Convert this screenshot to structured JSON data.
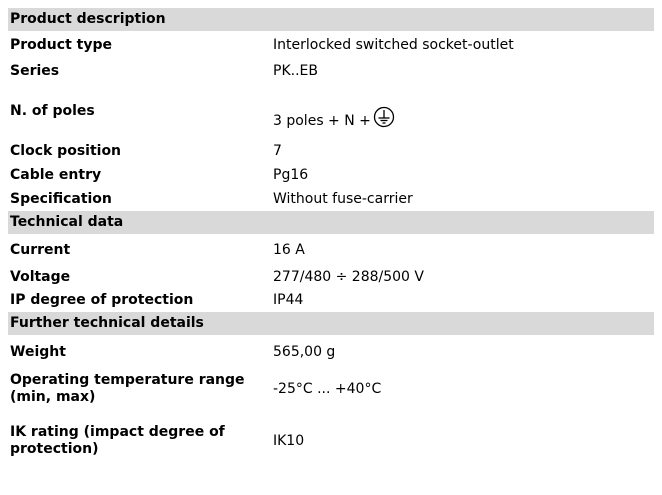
{
  "sections": [
    {
      "title": "Product description",
      "rows": [
        {
          "label": "Product type",
          "value": "Interlocked switched socket-outlet"
        },
        {
          "label": "Series",
          "value": "PK..EB"
        },
        {
          "label": "N. of poles",
          "value": "3 poles + N +"
        },
        {
          "label": "Clock position",
          "value": "7"
        },
        {
          "label": "Cable entry",
          "value": "Pg16"
        },
        {
          "label": "Specification",
          "value": "Without fuse-carrier"
        }
      ]
    },
    {
      "title": "Technical data",
      "rows": [
        {
          "label": "Current",
          "value": "16 A"
        },
        {
          "label": "Voltage",
          "value": "277/480 ÷ 288/500 V"
        },
        {
          "label": "IP degree of protection",
          "value": "IP44"
        }
      ]
    },
    {
      "title": "Further technical details",
      "rows": [
        {
          "label": "Weight",
          "value": "565,00 g"
        },
        {
          "label": "Operating temperature range (min, max)",
          "value": "-25°C ... +40°C"
        },
        {
          "label": "IK rating (impact degree of protection)",
          "value": "IK10"
        }
      ]
    }
  ]
}
